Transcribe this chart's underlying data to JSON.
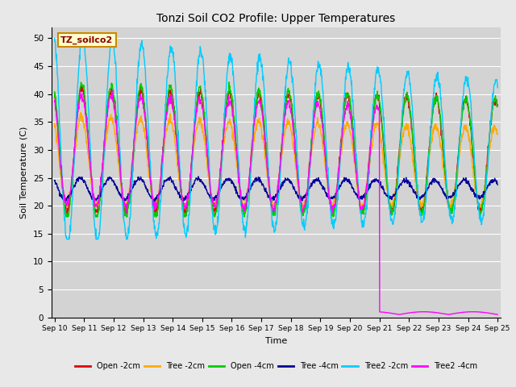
{
  "title": "Tonzi Soil CO2 Profile: Upper Temperatures",
  "xlabel": "Time",
  "ylabel": "Soil Temperature (C)",
  "ylim": [
    0,
    52
  ],
  "background_color": "#e8e8e8",
  "plot_bg_color": "#d3d3d3",
  "annotation_text": "TZ_soilco2",
  "annotation_bg": "#ffffcc",
  "annotation_border": "#cc8800",
  "series": [
    {
      "label": "Open -2cm",
      "color": "#dd0000"
    },
    {
      "label": "Tree -2cm",
      "color": "#ffaa00"
    },
    {
      "label": "Open -4cm",
      "color": "#00cc00"
    },
    {
      "label": "Tree -4cm",
      "color": "#000099"
    },
    {
      "label": "Tree2 -2cm",
      "color": "#00ccff"
    },
    {
      "label": "Tree2 -4cm",
      "color": "#ff00ff"
    }
  ],
  "xtick_labels": [
    "Sep 10",
    "Sep 11",
    "Sep 12",
    "Sep 13",
    "Sep 14",
    "Sep 15",
    "Sep 16",
    "Sep 17",
    "Sep 18",
    "Sep 19",
    "Sep 20",
    "Sep 21",
    "Sep 22",
    "Sep 23",
    "Sep 24",
    "Sep 25"
  ],
  "ytick_values": [
    0,
    5,
    10,
    15,
    20,
    25,
    30,
    35,
    40,
    45,
    50
  ]
}
